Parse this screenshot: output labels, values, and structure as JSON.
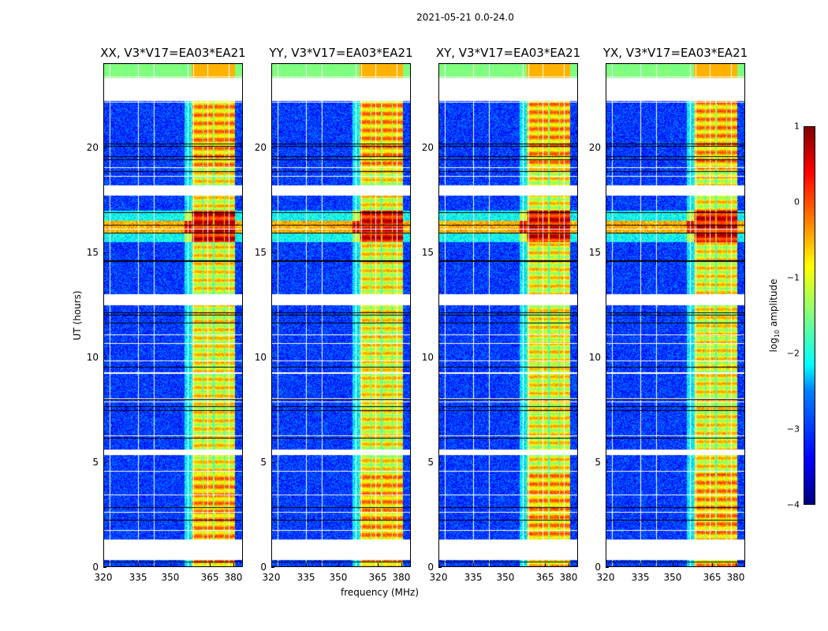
{
  "chart_data": {
    "type": "heatmap",
    "title": "2021-05-21 0.0-24.0",
    "xlabel": "frequency (MHz)",
    "ylabel": "UT (hours)",
    "ylim": [
      0,
      24
    ],
    "xlim": [
      320,
      381
    ],
    "xticks": [
      "320",
      "335",
      "350",
      "365",
      "380"
    ],
    "yticks": [
      "0",
      "5",
      "10",
      "15",
      "20"
    ],
    "panels": [
      {
        "title": "XX, V3*V17=EA03*EA21"
      },
      {
        "title": "YY, V3*V17=EA03*EA21"
      },
      {
        "title": "XY, V3*V17=EA03*EA21"
      },
      {
        "title": "YX, V3*V17=EA03*EA21"
      }
    ],
    "flagged_gaps_hours": [
      [
        22.2,
        23.3
      ],
      [
        17.7,
        18.2
      ],
      [
        12.5,
        13.0
      ],
      [
        5.35,
        5.6
      ],
      [
        0.35,
        1.35
      ]
    ],
    "strong_rfi_hours": [
      15.5,
      17.0
    ],
    "rfi_band_fraction": [
      0.63,
      0.94
    ],
    "colorbar": {
      "label_prefix": "log",
      "label_sub": "10",
      "label_suffix": " amplitude",
      "range": [
        -4,
        1
      ],
      "ticks": [
        "1",
        "0",
        "−1",
        "−2",
        "−3",
        "−4"
      ]
    },
    "colormap": "jet"
  }
}
